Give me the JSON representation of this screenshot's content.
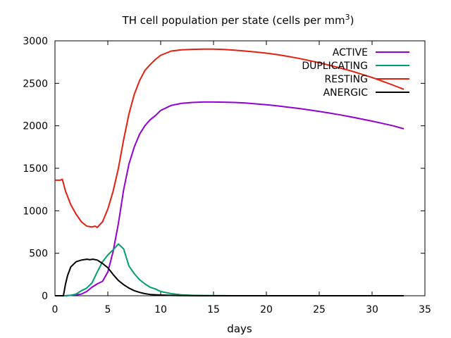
{
  "chart_data": {
    "type": "line",
    "title": "TH cell population per state (cells per mm",
    "title_sup": "3",
    "title_suffix": ")",
    "xlabel": "days",
    "ylabel": "",
    "xlim": [
      0,
      35
    ],
    "ylim": [
      0,
      3000
    ],
    "xticks": [
      0,
      5,
      10,
      15,
      20,
      25,
      30,
      35
    ],
    "yticks": [
      0,
      500,
      1000,
      1500,
      2000,
      2500,
      3000
    ],
    "grid": false,
    "legend_position": "top-right",
    "series": [
      {
        "name": "ACTIVE",
        "color": "#9400d3",
        "x": [
          0,
          0.5,
          1,
          1.5,
          2,
          2.5,
          3,
          3.5,
          4,
          4.5,
          5,
          5.5,
          6,
          6.5,
          7,
          7.5,
          8,
          8.5,
          9,
          9.5,
          10,
          11,
          12,
          13,
          14,
          15,
          16,
          17,
          18,
          19,
          20,
          21,
          22,
          23,
          24,
          25,
          26,
          27,
          28,
          29,
          30,
          31,
          32,
          33
        ],
        "y": [
          0,
          0,
          0,
          5,
          10,
          20,
          50,
          100,
          140,
          170,
          280,
          520,
          850,
          1250,
          1550,
          1750,
          1900,
          2000,
          2070,
          2120,
          2180,
          2240,
          2265,
          2275,
          2280,
          2280,
          2278,
          2275,
          2268,
          2258,
          2248,
          2235,
          2220,
          2205,
          2188,
          2170,
          2150,
          2128,
          2105,
          2080,
          2055,
          2028,
          2000,
          1965
        ]
      },
      {
        "name": "DUPLICATING",
        "color": "#009e73",
        "x": [
          0,
          0.5,
          1,
          1.5,
          2,
          2.5,
          3,
          3.5,
          4,
          4.5,
          5,
          5.5,
          6,
          6.5,
          7,
          7.5,
          8,
          8.5,
          9,
          9.5,
          10,
          11,
          12,
          13,
          14,
          15,
          16,
          17,
          18,
          19,
          20,
          21,
          22,
          23,
          24,
          25,
          26,
          27,
          28,
          29,
          30,
          31,
          32,
          33
        ],
        "y": [
          0,
          0,
          0,
          5,
          20,
          60,
          90,
          150,
          280,
          400,
          480,
          540,
          610,
          550,
          350,
          260,
          190,
          140,
          100,
          80,
          50,
          25,
          10,
          5,
          3,
          2,
          1,
          0,
          0,
          0,
          0,
          0,
          0,
          0,
          0,
          0,
          0,
          0,
          0,
          0,
          0,
          0,
          0,
          0
        ]
      },
      {
        "name": "RESTING",
        "color": "#e51e10",
        "x": [
          0,
          0.5,
          0.7,
          1,
          1.5,
          2,
          2.5,
          3,
          3.5,
          3.8,
          4,
          4.5,
          5,
          5.5,
          6,
          6.5,
          7,
          7.5,
          8,
          8.5,
          9,
          9.5,
          10,
          11,
          12,
          13,
          14,
          15,
          16,
          17,
          18,
          19,
          20,
          21,
          22,
          23,
          24,
          25,
          26,
          27,
          28,
          29,
          30,
          31,
          32,
          33
        ],
        "y": [
          1360,
          1360,
          1370,
          1230,
          1070,
          960,
          870,
          820,
          810,
          820,
          805,
          870,
          1020,
          1230,
          1500,
          1840,
          2140,
          2370,
          2530,
          2650,
          2720,
          2780,
          2830,
          2880,
          2895,
          2900,
          2902,
          2902,
          2898,
          2890,
          2880,
          2868,
          2855,
          2838,
          2818,
          2795,
          2770,
          2742,
          2712,
          2680,
          2646,
          2608,
          2568,
          2524,
          2478,
          2430
        ]
      },
      {
        "name": "ANERGIC",
        "color": "#000000",
        "x": [
          0,
          0.5,
          0.8,
          1,
          1.2,
          1.5,
          2,
          2.5,
          3,
          3.3,
          3.6,
          4,
          4.5,
          5,
          5.5,
          6,
          6.5,
          7,
          7.5,
          8,
          8.5,
          9,
          10,
          11,
          12,
          13,
          14,
          15,
          16,
          17,
          18,
          19,
          20,
          21,
          22,
          23,
          24,
          25,
          26,
          27,
          28,
          29,
          30,
          31,
          32,
          33
        ],
        "y": [
          0,
          0,
          0,
          140,
          240,
          340,
          400,
          420,
          430,
          425,
          430,
          420,
          380,
          330,
          250,
          180,
          130,
          90,
          60,
          40,
          25,
          15,
          8,
          4,
          2,
          1,
          0,
          0,
          0,
          0,
          0,
          0,
          0,
          0,
          0,
          0,
          0,
          0,
          0,
          0,
          0,
          0,
          0,
          0,
          0,
          0
        ]
      }
    ]
  }
}
